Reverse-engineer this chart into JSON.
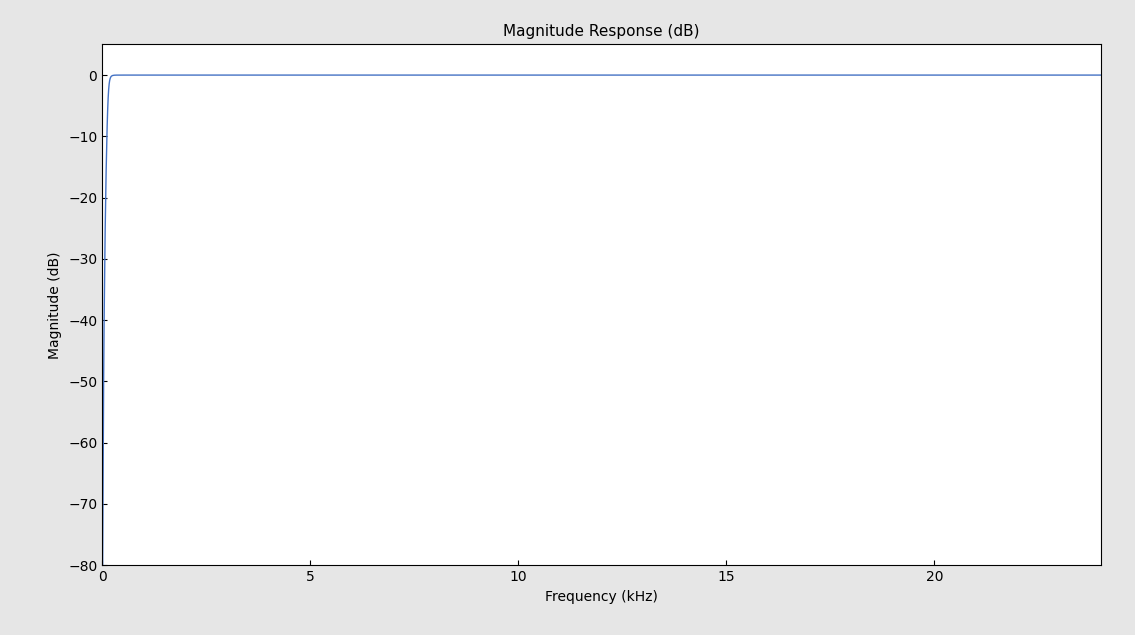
{
  "title": "Magnitude Response (dB)",
  "xlabel": "Frequency (kHz)",
  "ylabel": "Magnitude (dB)",
  "xlim": [
    0,
    24
  ],
  "ylim": [
    -80,
    5
  ],
  "xticks": [
    0,
    5,
    10,
    15,
    20
  ],
  "yticks": [
    -80,
    -70,
    -60,
    -50,
    -40,
    -30,
    -20,
    -10,
    0
  ],
  "line_color": "#4472c4",
  "line_width": 1.0,
  "fc_khz": 0.15,
  "filter_order": 4,
  "n_points": 2000,
  "background_color": "#e6e6e6",
  "axes_background": "#ffffff",
  "grid_color": "#ffffff",
  "title_fontsize": 11,
  "label_fontsize": 10,
  "tick_fontsize": 10
}
